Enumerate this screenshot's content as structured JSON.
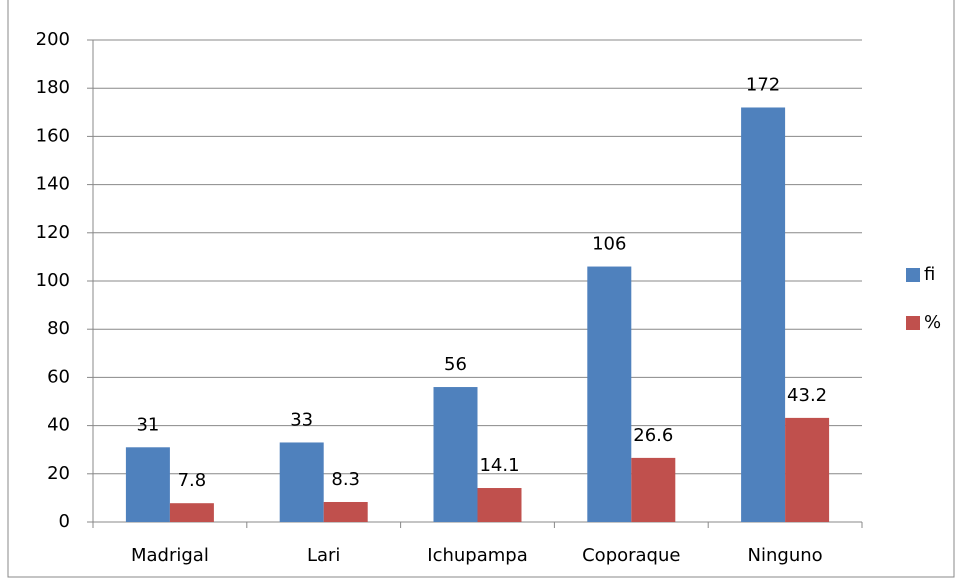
{
  "chart_data": {
    "type": "bar",
    "categories": [
      "Madrigal",
      "Lari",
      "Ichupampa",
      "Coporaque",
      "Ninguno"
    ],
    "series": [
      {
        "name": "fi",
        "color": "#4f81bd",
        "values": [
          31,
          33,
          56,
          106,
          172
        ]
      },
      {
        "name": "%",
        "color": "#c0504d",
        "values": [
          7.8,
          8.3,
          14.1,
          26.6,
          43.2
        ]
      }
    ],
    "ylim": [
      0,
      200
    ],
    "yticks": [
      0,
      20,
      40,
      60,
      80,
      100,
      120,
      140,
      160,
      180,
      200
    ],
    "grid": true,
    "legend": "right"
  }
}
